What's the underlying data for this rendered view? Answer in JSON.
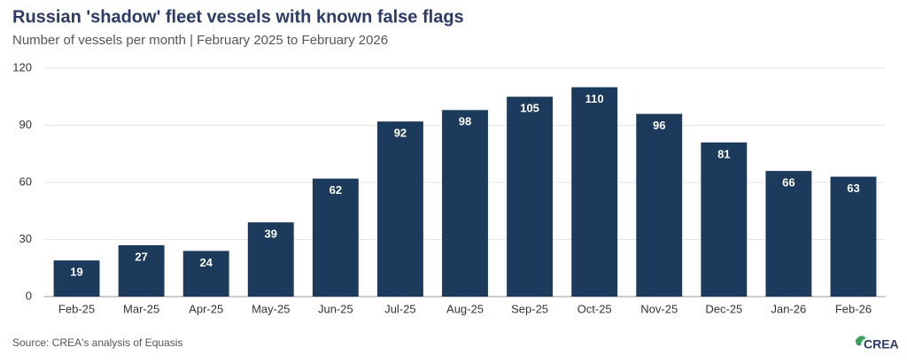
{
  "chart_data": {
    "type": "bar",
    "title": "Russian 'shadow' fleet vessels with known false flags",
    "subtitle": "Number of vessels per month | February 2025 to February 2026",
    "source": "Source: CREA's analysis of Equasis",
    "logo": "CREA",
    "categories": [
      "Feb-25",
      "Mar-25",
      "Apr-25",
      "May-25",
      "Jun-25",
      "Jul-25",
      "Aug-25",
      "Sep-25",
      "Oct-25",
      "Nov-25",
      "Dec-25",
      "Jan-26",
      "Feb-26"
    ],
    "values": [
      19,
      27,
      24,
      39,
      62,
      92,
      98,
      105,
      110,
      96,
      81,
      66,
      63
    ],
    "color": "#1b3a5c",
    "ylim": [
      0,
      120
    ],
    "yticks": [
      0,
      30,
      60,
      90,
      120
    ],
    "grid": true
  }
}
